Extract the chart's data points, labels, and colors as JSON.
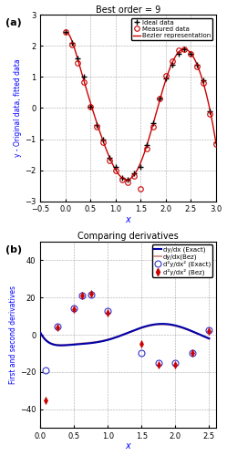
{
  "title_a": "Best order = 9",
  "title_b": "Comparing derivatives",
  "xlabel_a": "x",
  "ylabel_a": "y - Original data, fitted data",
  "xlabel_b": "x",
  "ylabel_b": "First and second derivatives",
  "label_a": "(a)",
  "label_b": "(b)",
  "xlim_a": [
    -0.5,
    3.0
  ],
  "ylim_a": [
    -3.0,
    3.0
  ],
  "xlim_b": [
    0.0,
    2.6
  ],
  "ylim_b": [
    -50,
    50
  ],
  "yticks_a": [
    -3,
    -2,
    -1,
    0,
    1,
    2,
    3
  ],
  "yticks_b": [
    -40,
    -20,
    0,
    20,
    40
  ],
  "xticks_a": [
    -0.5,
    0,
    0.5,
    1.0,
    1.5,
    2.0,
    2.5,
    3.0
  ],
  "xticks_b": [
    0,
    0.5,
    1.0,
    1.5,
    2.0,
    2.5
  ],
  "ideal_x": [
    0.0,
    0.125,
    0.25,
    0.375,
    0.5,
    0.625,
    0.75,
    0.875,
    1.0,
    1.125,
    1.25,
    1.375,
    1.5,
    1.625,
    1.75,
    1.875,
    2.0,
    2.125,
    2.25,
    2.375,
    2.5,
    2.625,
    2.75,
    2.875,
    3.0
  ],
  "ideal_y": [
    2.45,
    2.1,
    1.6,
    1.0,
    0.05,
    -0.55,
    -1.0,
    -1.6,
    -1.9,
    -2.25,
    -2.3,
    -2.1,
    -1.9,
    -1.2,
    -0.5,
    0.3,
    0.95,
    1.4,
    1.75,
    1.9,
    1.75,
    1.4,
    0.9,
    -0.1,
    -1.1
  ],
  "measured_x": [
    0.0,
    0.125,
    0.25,
    0.375,
    0.5,
    0.625,
    0.75,
    0.875,
    1.0,
    1.125,
    1.25,
    1.375,
    1.5,
    1.625,
    1.75,
    1.875,
    2.0,
    2.125,
    2.25,
    2.375,
    2.5,
    2.625,
    2.75,
    2.875,
    3.0
  ],
  "measured_y": [
    2.45,
    2.05,
    1.45,
    0.85,
    0.05,
    -0.6,
    -1.1,
    -1.7,
    -2.0,
    -2.3,
    -2.4,
    -2.2,
    -2.6,
    -1.3,
    -0.6,
    0.3,
    1.05,
    1.5,
    1.85,
    1.9,
    1.75,
    1.35,
    0.8,
    -0.2,
    -1.15
  ],
  "bezier_color": "#cc0000",
  "ideal_color": "#000000",
  "measured_color": "#cc0000",
  "dy_exact_color": "#0000aa",
  "dy_bez_color": "#cc8888",
  "d2y_exact_color": "#3333cc",
  "d2y_bez_color": "#cc0000",
  "d2y_exact_pts_x": [
    0.08,
    0.25,
    0.5,
    0.62,
    0.75,
    1.0,
    1.5,
    1.75,
    2.0,
    2.25,
    2.5
  ],
  "d2y_exact_pts_y": [
    -19,
    4.5,
    14,
    21,
    21.5,
    13,
    -10,
    -15,
    -15,
    -10,
    2.5
  ],
  "d2y_bez_pts_x": [
    0.08,
    0.25,
    0.5,
    0.62,
    0.75,
    1.0,
    1.5,
    1.75,
    2.0,
    2.25,
    2.5
  ],
  "d2y_bez_pts_y": [
    -35,
    4,
    13.5,
    21,
    22,
    12,
    -5,
    -16,
    -16,
    -10,
    2
  ],
  "legend_b_entries": [
    "dy/dx (Exact)",
    "dy/dx(Bez)",
    "d²y/dx² (Exact)",
    "d²y/dx² (Bez)"
  ],
  "legend_a_entries": [
    "Ideal data",
    "Measured data",
    "Bezier representation"
  ]
}
